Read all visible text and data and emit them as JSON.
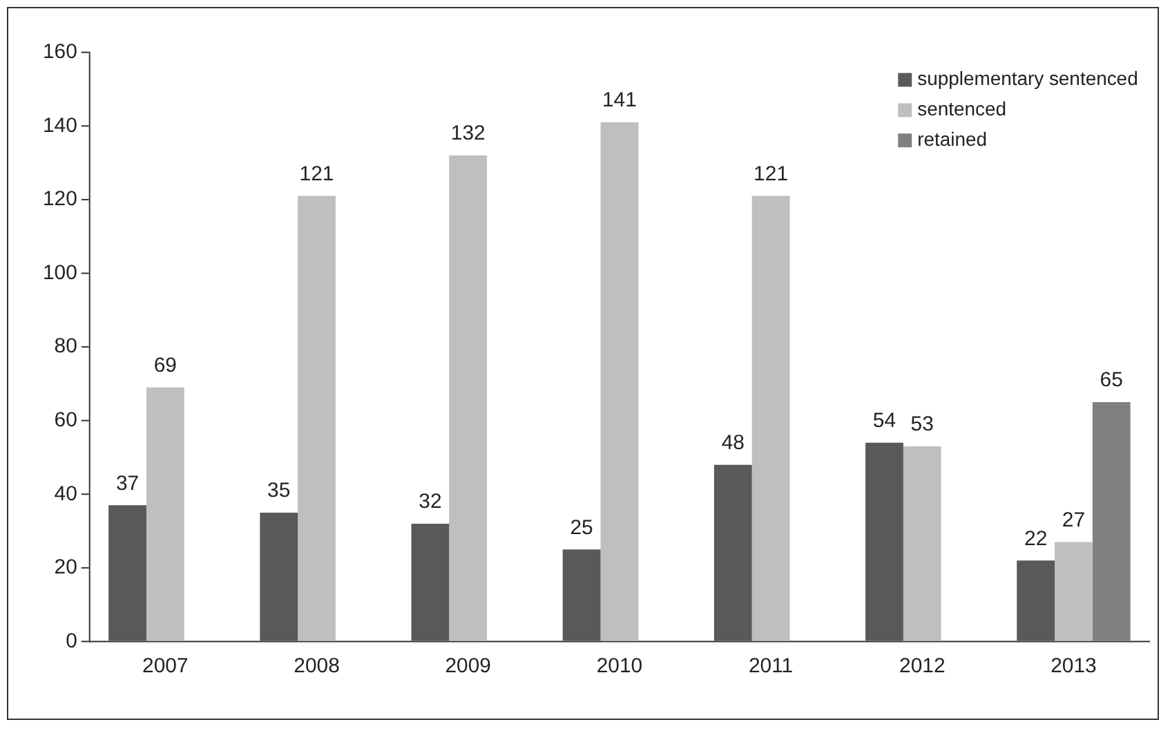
{
  "chart_data": {
    "type": "bar",
    "categories": [
      "2007",
      "2008",
      "2009",
      "2010",
      "2011",
      "2012",
      "2013"
    ],
    "series": [
      {
        "name": "supplementary sentenced",
        "color": "#595959",
        "values": [
          37,
          35,
          32,
          25,
          48,
          54,
          22
        ]
      },
      {
        "name": "sentenced",
        "color": "#bfbfbf",
        "values": [
          69,
          121,
          132,
          141,
          121,
          53,
          27
        ]
      },
      {
        "name": "retained",
        "color": "#808080",
        "values": [
          null,
          null,
          null,
          null,
          null,
          null,
          65
        ]
      }
    ],
    "ylim": [
      0,
      160
    ],
    "yticks": [
      0,
      20,
      40,
      60,
      80,
      100,
      120,
      140,
      160
    ],
    "grid": false,
    "legend": "top right",
    "data_labels": true
  }
}
